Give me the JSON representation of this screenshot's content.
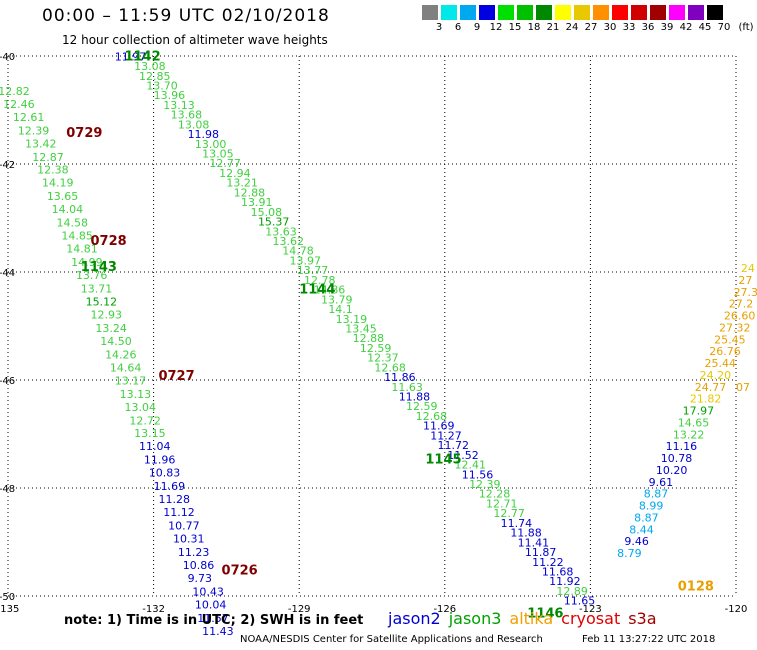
{
  "header": {
    "title": "00:00 – 11:59 UTC 02/10/2018",
    "subtitle": "12 hour collection of altimeter wave heights"
  },
  "color_scale": {
    "labels": [
      "3",
      "6",
      "9",
      "12",
      "15",
      "18",
      "21",
      "24",
      "27",
      "30",
      "33",
      "36",
      "39",
      "42",
      "45",
      "70",
      "(ft)"
    ],
    "colors": [
      "#808080",
      "#00e8e8",
      "#00a8f0",
      "#0000e0",
      "#00e000",
      "#00c000",
      "#008800",
      "#ffff00",
      "#e8c800",
      "#ff9000",
      "#ff0000",
      "#d00000",
      "#a00000",
      "#ff00ff",
      "#8000c0",
      "#000000"
    ]
  },
  "footer": {
    "note": "note: 1) Time is in UTC; 2) SWH is in feet",
    "credit": "NOAA/NESDIS Center for Satellite Applications and Research",
    "timestamp": "Feb 11 13:27:22 UTC 2018"
  },
  "legend": [
    {
      "name": "jason2",
      "color": "#0000d0"
    },
    {
      "name": "jason3",
      "color": "#00a000"
    },
    {
      "name": "altika",
      "color": "#f0a000"
    },
    {
      "name": "cryosat",
      "color": "#e00000"
    },
    {
      "name": "s3a",
      "color": "#a00000"
    }
  ],
  "chart_data": {
    "type": "scatter",
    "title": "12 hour collection of altimeter wave heights",
    "xlabel": "",
    "ylabel": "",
    "xlim": [
      -135,
      -120
    ],
    "ylim": [
      -50,
      -40
    ],
    "x_ticks": [
      {
        "value": -135,
        "label": "-135"
      },
      {
        "value": -132,
        "label": "-132"
      },
      {
        "value": -129,
        "label": "-129"
      },
      {
        "value": -126,
        "label": "-126"
      },
      {
        "value": -123,
        "label": "-123"
      },
      {
        "value": -120,
        "label": "-120"
      }
    ],
    "y_ticks": [
      {
        "value": -40,
        "label": "-40"
      },
      {
        "value": -42,
        "label": "-42"
      },
      {
        "value": -44,
        "label": "-44"
      },
      {
        "value": -46,
        "label": "-46"
      },
      {
        "value": -48,
        "label": "-48"
      },
      {
        "value": -50,
        "label": "-50"
      }
    ],
    "time_labels": [
      {
        "x": -132.6,
        "y": -40.08,
        "text": "1142",
        "color": "#008800"
      },
      {
        "x": -133.5,
        "y": -43.98,
        "text": "1143",
        "color": "#008800"
      },
      {
        "x": -129.0,
        "y": -44.4,
        "text": "1144",
        "color": "#008800"
      },
      {
        "x": -126.4,
        "y": -47.55,
        "text": "1145",
        "color": "#008800"
      },
      {
        "x": -124.3,
        "y": -50.4,
        "text": "1146",
        "color": "#008800"
      },
      {
        "x": -133.8,
        "y": -41.5,
        "text": "0729",
        "color": "#800000"
      },
      {
        "x": -133.3,
        "y": -43.5,
        "text": "0728",
        "color": "#800000"
      },
      {
        "x": -131.9,
        "y": -46.0,
        "text": "0727",
        "color": "#800000"
      },
      {
        "x": -130.6,
        "y": -49.6,
        "text": "0726",
        "color": "#800000"
      },
      {
        "x": -121.2,
        "y": -49.9,
        "text": "0128",
        "color": "#e8a000"
      }
    ],
    "series": [
      {
        "name": "jason3",
        "points": [
          [
            -132.8,
            -40.08,
            "11.97",
            "#0000d0"
          ],
          [
            -132.4,
            -40.26,
            "13.08",
            "#40d040"
          ],
          [
            -132.3,
            -40.44,
            "12.85",
            "#40d040"
          ],
          [
            -132.15,
            -40.62,
            "13.70",
            "#40d040"
          ],
          [
            -132.0,
            -40.8,
            "13.96",
            "#40d040"
          ],
          [
            -131.8,
            -40.98,
            "13.13",
            "#40d040"
          ],
          [
            -131.65,
            -41.16,
            "13.68",
            "#40d040"
          ],
          [
            -131.5,
            -41.34,
            "13.08",
            "#40d040"
          ],
          [
            -131.3,
            -41.52,
            "11.98",
            "#0000d0"
          ],
          [
            -131.15,
            -41.7,
            "13.00",
            "#40d040"
          ],
          [
            -131.0,
            -41.88,
            "13.05",
            "#40d040"
          ],
          [
            -130.85,
            -42.06,
            "12.77",
            "#40d040"
          ],
          [
            -130.65,
            -42.24,
            "12.94",
            "#40d040"
          ],
          [
            -130.5,
            -42.42,
            "13.21",
            "#40d040"
          ],
          [
            -130.35,
            -42.6,
            "12.88",
            "#40d040"
          ],
          [
            -130.2,
            -42.78,
            "13.91",
            "#40d040"
          ],
          [
            -130.0,
            -42.96,
            "15.08",
            "#40d040"
          ],
          [
            -129.85,
            -43.14,
            "15.37",
            "#00a000"
          ],
          [
            -129.7,
            -43.32,
            "13.63",
            "#40d040"
          ],
          [
            -129.55,
            -43.5,
            "13.62",
            "#40d040"
          ],
          [
            -129.35,
            -43.68,
            "14.78",
            "#40d040"
          ],
          [
            -129.2,
            -43.86,
            "13.97",
            "#40d040"
          ],
          [
            -129.05,
            -44.04,
            "13.77",
            "#40d040"
          ],
          [
            -128.9,
            -44.22,
            "12.78",
            "#40d040"
          ],
          [
            -128.7,
            -44.4,
            "14.86",
            "#40d040"
          ],
          [
            -128.55,
            -44.58,
            "13.79",
            "#40d040"
          ],
          [
            -128.4,
            -44.76,
            "14.1",
            "#40d040"
          ],
          [
            -128.25,
            -44.94,
            "13.19",
            "#40d040"
          ],
          [
            -128.05,
            -45.12,
            "13.45",
            "#40d040"
          ],
          [
            -127.9,
            -45.3,
            "12.88",
            "#40d040"
          ],
          [
            -127.75,
            -45.48,
            "12.59",
            "#40d040"
          ],
          [
            -127.6,
            -45.66,
            "12.37",
            "#40d040"
          ],
          [
            -127.45,
            -45.84,
            "12.68",
            "#40d040"
          ],
          [
            -127.25,
            -46.02,
            "11.86",
            "#0000d0"
          ],
          [
            -127.1,
            -46.2,
            "11.63",
            "#40d040"
          ],
          [
            -126.95,
            -46.38,
            "11.88",
            "#0000d0"
          ],
          [
            -126.8,
            -46.56,
            "12.59",
            "#40d040"
          ],
          [
            -126.6,
            -46.74,
            "12.68",
            "#40d040"
          ],
          [
            -126.45,
            -46.92,
            "11.69",
            "#0000d0"
          ],
          [
            -126.3,
            -47.1,
            "11.27",
            "#0000d0"
          ],
          [
            -126.15,
            -47.28,
            "11.72",
            "#0000d0"
          ],
          [
            -125.95,
            -47.46,
            "11.52",
            "#0000d0"
          ],
          [
            -125.8,
            -47.64,
            "12.41",
            "#40d040"
          ],
          [
            -125.65,
            -47.82,
            "11.56",
            "#0000d0"
          ],
          [
            -125.5,
            -48.0,
            "12.39",
            "#40d040"
          ],
          [
            -125.3,
            -48.18,
            "12.28",
            "#40d040"
          ],
          [
            -125.15,
            -48.36,
            "12.71",
            "#40d040"
          ],
          [
            -125.0,
            -48.54,
            "12.77",
            "#40d040"
          ],
          [
            -124.85,
            -48.72,
            "11.74",
            "#0000d0"
          ],
          [
            -124.65,
            -48.9,
            "11.88",
            "#0000d0"
          ],
          [
            -124.5,
            -49.08,
            "11.41",
            "#0000d0"
          ],
          [
            -124.35,
            -49.26,
            "11.87",
            "#0000d0"
          ],
          [
            -124.2,
            -49.44,
            "11.22",
            "#0000d0"
          ],
          [
            -124.0,
            -49.62,
            "11.68",
            "#0000d0"
          ],
          [
            -123.85,
            -49.8,
            "11.92",
            "#0000d0"
          ],
          [
            -123.7,
            -49.98,
            "12.89",
            "#40d040"
          ],
          [
            -123.55,
            -50.16,
            "11.65",
            "#0000d0"
          ]
        ]
      },
      {
        "name": "s3a",
        "points": [
          [
            -135.2,
            -40.72,
            "12.82",
            "#40d040"
          ],
          [
            -135.1,
            -40.96,
            "12.46",
            "#40d040"
          ],
          [
            -134.9,
            -41.2,
            "12.61",
            "#40d040"
          ],
          [
            -134.8,
            -41.45,
            "12.39",
            "#40d040"
          ],
          [
            -134.65,
            -41.69,
            "13.42",
            "#40d040"
          ],
          [
            -134.5,
            -41.94,
            "12.87",
            "#40d040"
          ],
          [
            -134.4,
            -42.18,
            "12.38",
            "#40d040"
          ],
          [
            -134.3,
            -42.42,
            "14.19",
            "#40d040"
          ],
          [
            -134.2,
            -42.67,
            "13.65",
            "#40d040"
          ],
          [
            -134.1,
            -42.91,
            "14.04",
            "#40d040"
          ],
          [
            -134.0,
            -43.16,
            "14.58",
            "#40d040"
          ],
          [
            -133.9,
            -43.4,
            "14.85",
            "#40d040"
          ],
          [
            -133.8,
            -43.64,
            "14.81",
            "#40d040"
          ],
          [
            -133.7,
            -43.89,
            "14.99",
            "#40d040"
          ],
          [
            -133.6,
            -44.13,
            "13.76",
            "#40d040"
          ],
          [
            -133.5,
            -44.38,
            "13.71",
            "#40d040"
          ],
          [
            -133.4,
            -44.62,
            "15.12",
            "#00a000"
          ],
          [
            -133.3,
            -44.86,
            "12.93",
            "#40d040"
          ],
          [
            -133.2,
            -45.11,
            "13.24",
            "#40d040"
          ],
          [
            -133.1,
            -45.35,
            "14.50",
            "#40d040"
          ],
          [
            -133.0,
            -45.6,
            "14.26",
            "#40d040"
          ],
          [
            -132.9,
            -45.84,
            "14.64",
            "#40d040"
          ],
          [
            -132.8,
            -46.08,
            "13.17",
            "#40d040"
          ],
          [
            -132.7,
            -46.33,
            "13.13",
            "#40d040"
          ],
          [
            -132.6,
            -46.57,
            "13.04",
            "#40d040"
          ],
          [
            -132.5,
            -46.82,
            "12.72",
            "#40d040"
          ],
          [
            -132.4,
            -47.06,
            "13.15",
            "#40d040"
          ],
          [
            -132.3,
            -47.3,
            "11.04",
            "#0000d0"
          ],
          [
            -132.2,
            -47.55,
            "11.96",
            "#0000d0"
          ],
          [
            -132.1,
            -47.79,
            "10.83",
            "#0000d0"
          ],
          [
            -132.0,
            -48.04,
            "11.69",
            "#0000d0"
          ],
          [
            -131.9,
            -48.28,
            "11.28",
            "#0000d0"
          ],
          [
            -131.8,
            -48.52,
            "11.12",
            "#0000d0"
          ],
          [
            -131.7,
            -48.77,
            "10.77",
            "#0000d0"
          ],
          [
            -131.6,
            -49.01,
            "10.31",
            "#0000d0"
          ],
          [
            -131.5,
            -49.26,
            "11.23",
            "#0000d0"
          ],
          [
            -131.4,
            -49.5,
            "10.86",
            "#0000d0"
          ],
          [
            -131.3,
            -49.74,
            "9.73",
            "#0000d0"
          ],
          [
            -131.2,
            -49.99,
            "10.43",
            "#0000d0"
          ],
          [
            -131.15,
            -50.23,
            "10.04",
            "#0000d0"
          ],
          [
            -131.1,
            -50.48,
            "11.57",
            "#0000d0"
          ],
          [
            -131.0,
            -50.72,
            "11.43",
            "#0000d0"
          ]
        ]
      },
      {
        "name": "altika",
        "points": [
          [
            -119.9,
            -44.0,
            "24",
            "#e8c800"
          ],
          [
            -119.95,
            -44.22,
            "27",
            "#e8a000"
          ],
          [
            -120.05,
            -44.44,
            "27.3",
            "#e8a000"
          ],
          [
            -120.15,
            -44.66,
            "27.2",
            "#e8a000"
          ],
          [
            -120.25,
            -44.88,
            "26.60",
            "#e8a000"
          ],
          [
            -120.35,
            -45.1,
            "27.32",
            "#e8a000"
          ],
          [
            -120.45,
            -45.32,
            "25.45",
            "#e8a000"
          ],
          [
            -120.55,
            -45.54,
            "26.76",
            "#e8a000"
          ],
          [
            -120.65,
            -45.76,
            "25.44",
            "#e8a000"
          ],
          [
            -120.75,
            -45.98,
            "24.20",
            "#e8c800"
          ],
          [
            -120.85,
            -46.2,
            "24.77",
            "#e8a000"
          ],
          [
            -120.95,
            -46.42,
            "21.82",
            "#e8c800"
          ],
          [
            -121.1,
            -46.64,
            "17.97",
            "#00a000"
          ],
          [
            -121.2,
            -46.86,
            "14.65",
            "#40d040"
          ],
          [
            -121.3,
            -47.08,
            "13.22",
            "#40d040"
          ],
          [
            -121.45,
            -47.3,
            "11.16",
            "#0000d0"
          ],
          [
            -121.55,
            -47.52,
            "10.78",
            "#0000d0"
          ],
          [
            -121.65,
            -47.74,
            "10.20",
            "#0000d0"
          ],
          [
            -121.8,
            -47.96,
            "9.61",
            "#0000d0"
          ],
          [
            -121.9,
            -48.18,
            "8.87",
            "#00a8f0"
          ],
          [
            -122.0,
            -48.4,
            "8.99",
            "#00a8f0"
          ],
          [
            -122.1,
            -48.62,
            "8.87",
            "#00a8f0"
          ],
          [
            -122.2,
            -48.84,
            "8.44",
            "#00a8f0"
          ],
          [
            -122.3,
            -49.06,
            "9.46",
            "#0000d0"
          ],
          [
            -122.45,
            -49.28,
            "8.79",
            "#00a8f0"
          ],
          [
            -120.0,
            -46.2,
            "07",
            "#e8a000"
          ]
        ]
      }
    ]
  }
}
